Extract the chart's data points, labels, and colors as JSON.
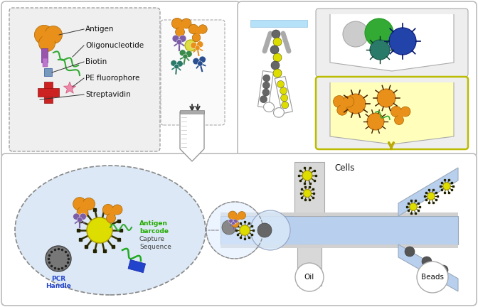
{
  "bg_color": "#f8f8f8",
  "colors": {
    "antigen_orange": "#E8901A",
    "antigen_orange2": "#D4791A",
    "antibody_purple": "#7B5EA7",
    "antibody_green": "#3A8A4A",
    "antibody_blue": "#2A4F90",
    "antibody_teal": "#2A7A6A",
    "cross_red": "#CC2222",
    "biotin_blue": "#7799BB",
    "pe_pink": "#EE88AA",
    "oligo_green": "#33AA33",
    "bead_yellow": "#DDCC00",
    "gray_cell": "#777777",
    "panel_gray": "#AAAAAA",
    "yellow_hl": "#FFFFAA",
    "flow_blue": "#B8CFEE",
    "arrow_yellow": "#BBAA00",
    "dna_green": "#22AA22",
    "dna_blue": "#2244CC",
    "light_blue_bg": "#D8E8F4",
    "white": "#FFFFFF",
    "label_black": "#111111"
  },
  "labels": {
    "antigen": "Antigen",
    "oligo": "Oligonucleotide",
    "biotin": "Biotin",
    "pe": "PE fluorophore",
    "strep": "Streptavidin",
    "cells": "Cells",
    "oil": "Oil",
    "beads": "Beads",
    "antigen_barcode": "Antigen\nbarcode",
    "capture_seq": "Capture\nSequence",
    "pcr_handle": "PCR\nHandle"
  }
}
